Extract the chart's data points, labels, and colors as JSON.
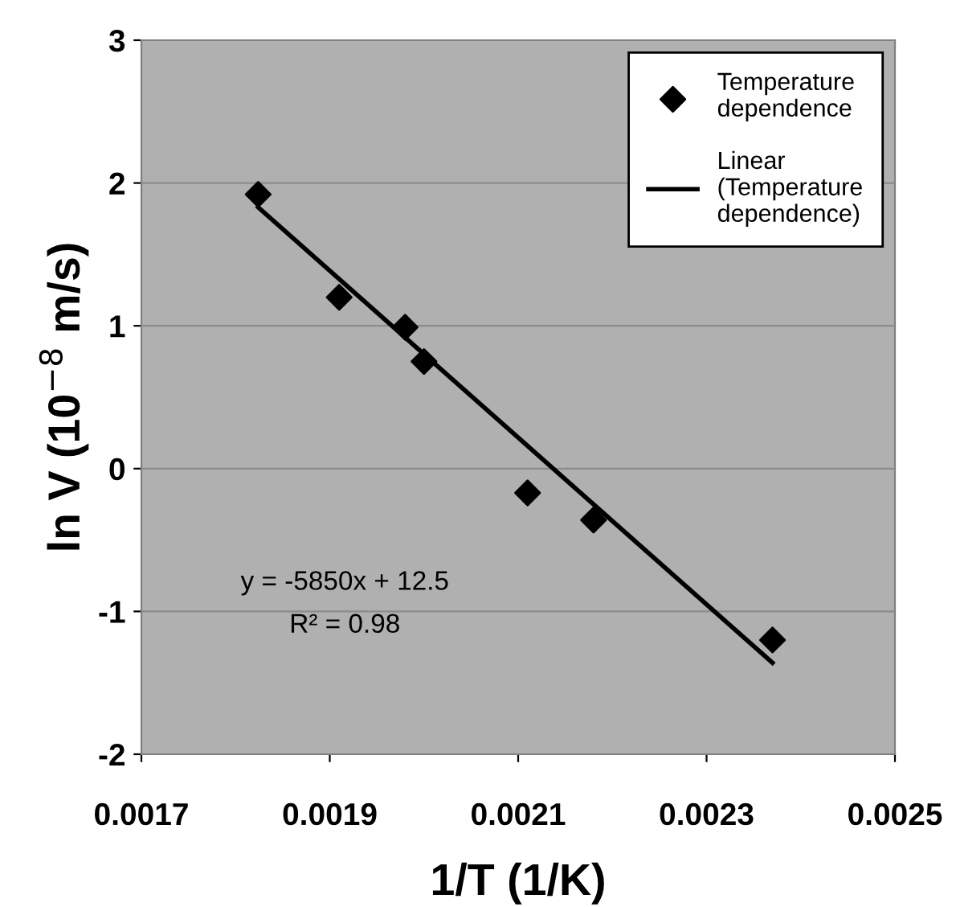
{
  "chart_data": {
    "type": "scatter",
    "xlabel": "1/T (1/K)",
    "ylabel": "ln V (10$^{−8}$ m/s)",
    "series": [
      {
        "name": "Temperature dependence",
        "color": "#000000",
        "marker": "diamond",
        "x": [
          0.001824,
          0.00191,
          0.00198,
          0.002,
          0.00211,
          0.00218,
          0.00237
        ],
        "values": [
          1.92,
          1.2,
          0.99,
          0.75,
          -0.17,
          -0.36,
          -1.2
        ]
      },
      {
        "name": "Linear (Temperature dependence)",
        "type": "line",
        "color": "#000000",
        "marker": "none",
        "line_style": "solid",
        "x": [
          0.001824,
          0.00237
        ],
        "values": [
          1.83,
          -1.36
        ]
      }
    ],
    "annotations": [
      "y = -5850x + 12.5",
      "R² = 0.98"
    ],
    "xlim": [
      0.0017,
      0.0025
    ],
    "xticks": [
      0.0017,
      0.0019,
      0.0021,
      0.0023,
      0.0025
    ],
    "ylim": [
      -2,
      3
    ],
    "yticks": [
      -2,
      -1,
      0,
      1,
      2,
      3
    ],
    "grid": "y",
    "legend": "top right"
  }
}
